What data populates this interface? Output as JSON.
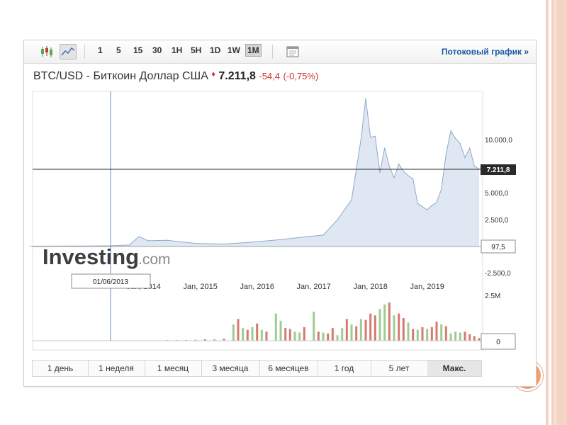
{
  "toolbar": {
    "timeframes": [
      "1",
      "5",
      "15",
      "30",
      "1H",
      "5H",
      "1D",
      "1W",
      "1M"
    ],
    "active_timeframe": "1M",
    "stream_link": "Потоковый график »"
  },
  "instrument": {
    "name": "BTC/USD - Биткоин Доллар США",
    "price": "7.211,8",
    "change": "-54,4",
    "change_pct": "(-0,75%)"
  },
  "colors": {
    "area_fill": "#dfe8f2",
    "area_line": "#8fa9c6",
    "up_volume": "#9ccc94",
    "down_volume": "#d47a6e",
    "negative": "#d03030",
    "link": "#1a5aa0"
  },
  "watermark": {
    "brand": "Investing",
    "suffix": ".com"
  },
  "crosshair": {
    "date_label": "01/06/2013",
    "price_label": "97,5"
  },
  "price_marker": "7.211,8",
  "periods": [
    "1 день",
    "1 неделя",
    "1 месяц",
    "3 месяца",
    "6 месяцев",
    "1 год",
    "5 лет",
    "Макс."
  ],
  "active_period": "Макс.",
  "chart_data": {
    "type": "area",
    "x_ticks": [
      "Jan, 2014",
      "Jan, 2015",
      "Jan, 2016",
      "Jan, 2017",
      "Jan, 2018",
      "Jan, 2019"
    ],
    "y_ticks": [
      "10.000,0",
      "5.000,0",
      "2.500,0",
      "-2.500,0"
    ],
    "volume_ticks": [
      "2.5M",
      "0"
    ],
    "series": [
      {
        "values": [
          {
            "x": "2012-01",
            "y": 50
          },
          {
            "x": "2013-01",
            "y": 70
          },
          {
            "x": "2013-06",
            "y": 97.5
          },
          {
            "x": "2013-10",
            "y": 170
          },
          {
            "x": "2013-12",
            "y": 950
          },
          {
            "x": "2014-02",
            "y": 560
          },
          {
            "x": "2014-06",
            "y": 600
          },
          {
            "x": "2014-12",
            "y": 320
          },
          {
            "x": "2015-06",
            "y": 260
          },
          {
            "x": "2015-12",
            "y": 430
          },
          {
            "x": "2016-06",
            "y": 670
          },
          {
            "x": "2016-12",
            "y": 960
          },
          {
            "x": "2017-03",
            "y": 1070
          },
          {
            "x": "2017-06",
            "y": 2480
          },
          {
            "x": "2017-09",
            "y": 4340
          },
          {
            "x": "2017-11",
            "y": 10000
          },
          {
            "x": "2017-12",
            "y": 13800
          },
          {
            "x": "2018-01",
            "y": 10200
          },
          {
            "x": "2018-02",
            "y": 10300
          },
          {
            "x": "2018-03",
            "y": 6900
          },
          {
            "x": "2018-04",
            "y": 9200
          },
          {
            "x": "2018-05",
            "y": 7500
          },
          {
            "x": "2018-06",
            "y": 6400
          },
          {
            "x": "2018-07",
            "y": 7700
          },
          {
            "x": "2018-08",
            "y": 7000
          },
          {
            "x": "2018-09",
            "y": 6600
          },
          {
            "x": "2018-10",
            "y": 6300
          },
          {
            "x": "2018-11",
            "y": 4000
          },
          {
            "x": "2018-12",
            "y": 3700
          },
          {
            "x": "2019-01",
            "y": 3400
          },
          {
            "x": "2019-02",
            "y": 3800
          },
          {
            "x": "2019-03",
            "y": 4100
          },
          {
            "x": "2019-04",
            "y": 5300
          },
          {
            "x": "2019-05",
            "y": 8600
          },
          {
            "x": "2019-06",
            "y": 10800
          },
          {
            "x": "2019-07",
            "y": 10100
          },
          {
            "x": "2019-08",
            "y": 9600
          },
          {
            "x": "2019-09",
            "y": 8300
          },
          {
            "x": "2019-10",
            "y": 9200
          },
          {
            "x": "2019-11",
            "y": 7500
          },
          {
            "x": "2019-12",
            "y": 7211.8
          }
        ]
      }
    ],
    "volume": [
      {
        "x": "2014-06",
        "v": 20000,
        "dir": "up"
      },
      {
        "x": "2014-08",
        "v": 25000,
        "dir": "up"
      },
      {
        "x": "2014-10",
        "v": 30000,
        "dir": "down"
      },
      {
        "x": "2014-12",
        "v": 60000,
        "dir": "up"
      },
      {
        "x": "2015-02",
        "v": 80000,
        "dir": "down"
      },
      {
        "x": "2015-04",
        "v": 90000,
        "dir": "up"
      },
      {
        "x": "2015-06",
        "v": 110000,
        "dir": "down"
      },
      {
        "x": "2015-08",
        "v": 900000,
        "dir": "up"
      },
      {
        "x": "2015-09",
        "v": 1200000,
        "dir": "down"
      },
      {
        "x": "2015-10",
        "v": 700000,
        "dir": "up"
      },
      {
        "x": "2015-11",
        "v": 600000,
        "dir": "down"
      },
      {
        "x": "2015-12",
        "v": 750000,
        "dir": "up"
      },
      {
        "x": "2016-01",
        "v": 950000,
        "dir": "down"
      },
      {
        "x": "2016-02",
        "v": 600000,
        "dir": "up"
      },
      {
        "x": "2016-03",
        "v": 500000,
        "dir": "down"
      },
      {
        "x": "2016-05",
        "v": 1500000,
        "dir": "up"
      },
      {
        "x": "2016-06",
        "v": 1100000,
        "dir": "up"
      },
      {
        "x": "2016-07",
        "v": 700000,
        "dir": "down"
      },
      {
        "x": "2016-08",
        "v": 650000,
        "dir": "down"
      },
      {
        "x": "2016-09",
        "v": 500000,
        "dir": "up"
      },
      {
        "x": "2016-10",
        "v": 450000,
        "dir": "up"
      },
      {
        "x": "2016-11",
        "v": 750000,
        "dir": "down"
      },
      {
        "x": "2017-01",
        "v": 1600000,
        "dir": "up"
      },
      {
        "x": "2017-02",
        "v": 500000,
        "dir": "down"
      },
      {
        "x": "2017-03",
        "v": 450000,
        "dir": "up"
      },
      {
        "x": "2017-04",
        "v": 400000,
        "dir": "down"
      },
      {
        "x": "2017-05",
        "v": 700000,
        "dir": "down"
      },
      {
        "x": "2017-06",
        "v": 300000,
        "dir": "up"
      },
      {
        "x": "2017-07",
        "v": 700000,
        "dir": "up"
      },
      {
        "x": "2017-08",
        "v": 1200000,
        "dir": "down"
      },
      {
        "x": "2017-09",
        "v": 900000,
        "dir": "up"
      },
      {
        "x": "2017-10",
        "v": 800000,
        "dir": "down"
      },
      {
        "x": "2017-11",
        "v": 1200000,
        "dir": "up"
      },
      {
        "x": "2017-12",
        "v": 1150000,
        "dir": "down"
      },
      {
        "x": "2018-01",
        "v": 1500000,
        "dir": "down"
      },
      {
        "x": "2018-02",
        "v": 1400000,
        "dir": "down"
      },
      {
        "x": "2018-03",
        "v": 1750000,
        "dir": "up"
      },
      {
        "x": "2018-04",
        "v": 2000000,
        "dir": "up"
      },
      {
        "x": "2018-05",
        "v": 2100000,
        "dir": "down"
      },
      {
        "x": "2018-06",
        "v": 1400000,
        "dir": "up"
      },
      {
        "x": "2018-07",
        "v": 1500000,
        "dir": "down"
      },
      {
        "x": "2018-08",
        "v": 1250000,
        "dir": "down"
      },
      {
        "x": "2018-09",
        "v": 1000000,
        "dir": "up"
      },
      {
        "x": "2018-10",
        "v": 650000,
        "dir": "down"
      },
      {
        "x": "2018-11",
        "v": 600000,
        "dir": "up"
      },
      {
        "x": "2018-12",
        "v": 750000,
        "dir": "down"
      },
      {
        "x": "2019-01",
        "v": 650000,
        "dir": "up"
      },
      {
        "x": "2019-02",
        "v": 750000,
        "dir": "down"
      },
      {
        "x": "2019-03",
        "v": 1050000,
        "dir": "down"
      },
      {
        "x": "2019-04",
        "v": 900000,
        "dir": "up"
      },
      {
        "x": "2019-05",
        "v": 800000,
        "dir": "down"
      },
      {
        "x": "2019-06",
        "v": 400000,
        "dir": "up"
      },
      {
        "x": "2019-07",
        "v": 500000,
        "dir": "up"
      },
      {
        "x": "2019-08",
        "v": 450000,
        "dir": "up"
      },
      {
        "x": "2019-09",
        "v": 500000,
        "dir": "down"
      },
      {
        "x": "2019-10",
        "v": 350000,
        "dir": "down"
      },
      {
        "x": "2019-11",
        "v": 250000,
        "dir": "down"
      },
      {
        "x": "2019-12",
        "v": 150000,
        "dir": "down"
      }
    ]
  }
}
